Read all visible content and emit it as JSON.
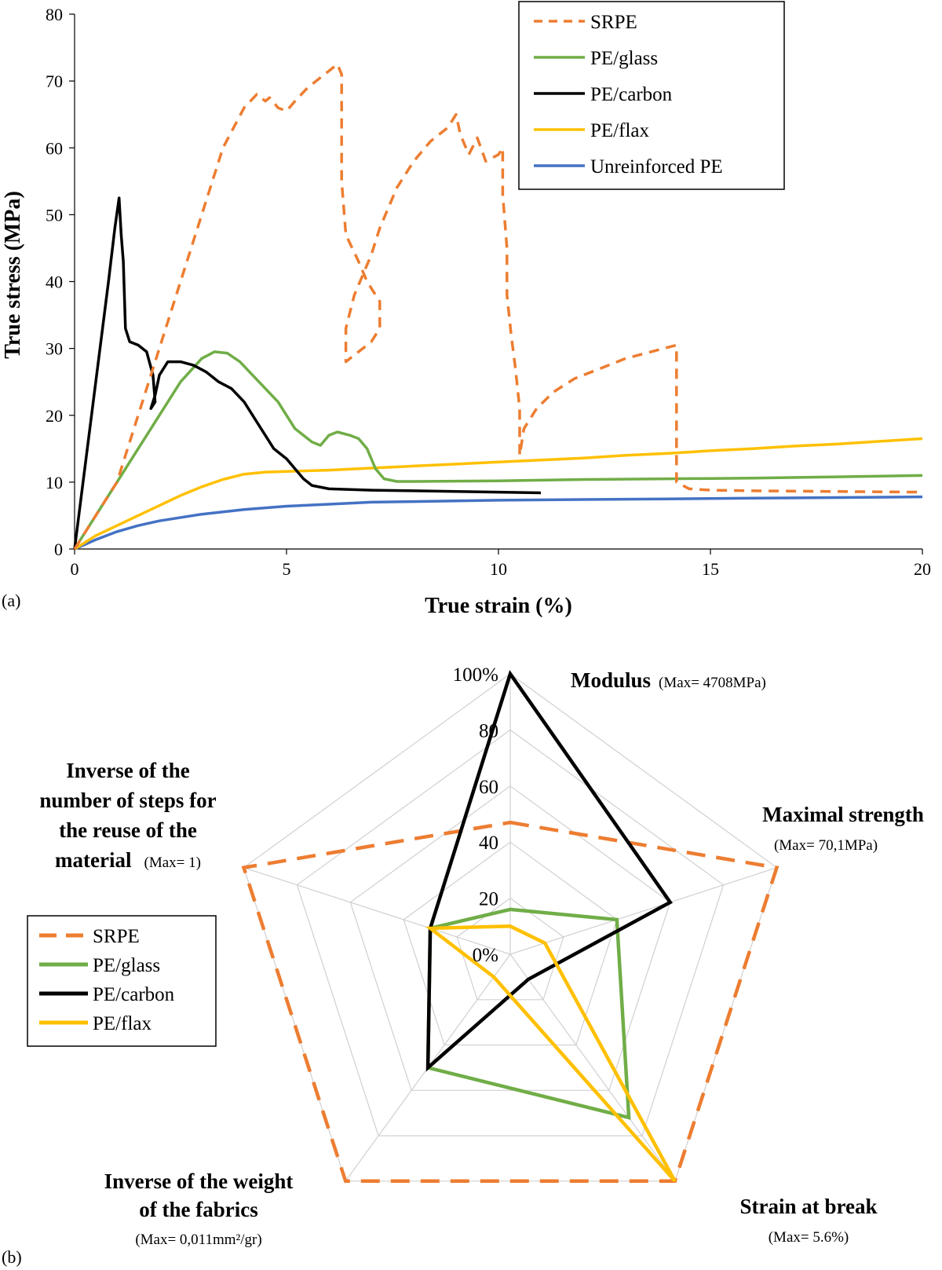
{
  "chart_data": [
    {
      "type": "line",
      "panel": "(a)",
      "xlabel": "True strain (%)",
      "ylabel": "True stress (MPa)",
      "xlim": [
        0,
        20
      ],
      "ylim": [
        0,
        80
      ],
      "xticks": [
        "0",
        "5",
        "10",
        "15",
        "20"
      ],
      "yticks": [
        "0",
        "10",
        "20",
        "30",
        "40",
        "50",
        "60",
        "70",
        "80"
      ],
      "grid": false,
      "legend_position": "top-right",
      "series": [
        {
          "name": "SRPE",
          "color": "#ED7D31",
          "dash": "dashed",
          "points": [
            [
              0,
              0
            ],
            [
              0.5,
              5
            ],
            [
              1.0,
              10
            ],
            [
              1.5,
              20
            ],
            [
              2.0,
              30
            ],
            [
              2.5,
              40
            ],
            [
              2.9,
              48
            ],
            [
              3.5,
              60
            ],
            [
              4.0,
              66
            ],
            [
              4.3,
              68
            ],
            [
              4.5,
              67
            ],
            [
              4.6,
              67.5
            ],
            [
              4.8,
              66
            ],
            [
              5.0,
              65.5
            ],
            [
              5.2,
              67
            ],
            [
              5.5,
              69
            ],
            [
              5.9,
              71
            ],
            [
              6.2,
              72.5
            ],
            [
              6.3,
              71
            ],
            [
              6.3,
              55
            ],
            [
              6.4,
              47
            ],
            [
              6.7,
              43
            ],
            [
              6.9,
              40
            ],
            [
              7.2,
              37
            ],
            [
              7.2,
              33
            ],
            [
              7.0,
              31
            ],
            [
              6.6,
              29
            ],
            [
              6.4,
              28
            ],
            [
              6.4,
              33
            ],
            [
              6.6,
              38
            ],
            [
              6.8,
              41
            ],
            [
              7.0,
              44
            ],
            [
              7.2,
              48
            ],
            [
              7.6,
              54
            ],
            [
              8.0,
              58
            ],
            [
              8.4,
              61
            ],
            [
              8.8,
              63
            ],
            [
              9.0,
              65
            ],
            [
              9.1,
              62
            ],
            [
              9.3,
              59
            ],
            [
              9.5,
              61.5
            ],
            [
              9.7,
              58
            ],
            [
              10.0,
              59
            ],
            [
              10.1,
              60
            ],
            [
              10.1,
              53
            ],
            [
              10.2,
              45
            ],
            [
              10.2,
              38
            ],
            [
              10.3,
              32
            ],
            [
              10.4,
              27
            ],
            [
              10.5,
              21
            ],
            [
              10.5,
              16
            ],
            [
              10.5,
              14
            ],
            [
              10.6,
              18
            ],
            [
              10.9,
              21
            ],
            [
              11.3,
              23.5
            ],
            [
              11.8,
              25.5
            ],
            [
              12.4,
              27
            ],
            [
              13.0,
              28.5
            ],
            [
              13.6,
              29.5
            ],
            [
              13.9,
              30
            ],
            [
              14.2,
              30.5
            ],
            [
              14.2,
              10
            ],
            [
              14.5,
              9
            ],
            [
              15,
              8.8
            ],
            [
              16,
              8.7
            ],
            [
              18,
              8.6
            ],
            [
              20,
              8.5
            ]
          ]
        },
        {
          "name": "PE/glass",
          "color": "#70AD47",
          "dash": "solid",
          "points": [
            [
              0,
              0
            ],
            [
              0.5,
              5
            ],
            [
              1.0,
              10
            ],
            [
              1.5,
              15
            ],
            [
              2.0,
              20
            ],
            [
              2.5,
              25
            ],
            [
              3.0,
              28.5
            ],
            [
              3.3,
              29.5
            ],
            [
              3.6,
              29.3
            ],
            [
              3.9,
              28
            ],
            [
              4.2,
              26
            ],
            [
              4.5,
              24
            ],
            [
              4.8,
              22
            ],
            [
              5.0,
              20
            ],
            [
              5.2,
              18
            ],
            [
              5.4,
              17
            ],
            [
              5.6,
              16
            ],
            [
              5.8,
              15.5
            ],
            [
              6.0,
              17
            ],
            [
              6.2,
              17.5
            ],
            [
              6.5,
              17
            ],
            [
              6.7,
              16.5
            ],
            [
              6.9,
              15
            ],
            [
              7.1,
              12
            ],
            [
              7.3,
              10.5
            ],
            [
              7.6,
              10.1
            ],
            [
              8,
              10.1
            ],
            [
              10,
              10.2
            ],
            [
              12,
              10.4
            ],
            [
              14,
              10.5
            ],
            [
              16,
              10.6
            ],
            [
              18,
              10.8
            ],
            [
              20,
              11
            ]
          ]
        },
        {
          "name": "PE/carbon",
          "color": "#000000",
          "dash": "solid",
          "points": [
            [
              0,
              0
            ],
            [
              0.2,
              10
            ],
            [
              0.4,
              20
            ],
            [
              0.6,
              30
            ],
            [
              0.8,
              40
            ],
            [
              0.95,
              48
            ],
            [
              1.05,
              52.5
            ],
            [
              1.1,
              47
            ],
            [
              1.15,
              43
            ],
            [
              1.2,
              33
            ],
            [
              1.3,
              31
            ],
            [
              1.5,
              30.5
            ],
            [
              1.7,
              29.5
            ],
            [
              1.85,
              26
            ],
            [
              1.9,
              22
            ],
            [
              1.8,
              21
            ],
            [
              1.9,
              23
            ],
            [
              2.0,
              26
            ],
            [
              2.2,
              28
            ],
            [
              2.5,
              28
            ],
            [
              2.8,
              27.5
            ],
            [
              3.1,
              26.5
            ],
            [
              3.4,
              25
            ],
            [
              3.7,
              24
            ],
            [
              4.0,
              22
            ],
            [
              4.3,
              19
            ],
            [
              4.5,
              17
            ],
            [
              4.7,
              15
            ],
            [
              5.0,
              13.5
            ],
            [
              5.2,
              12
            ],
            [
              5.4,
              10.5
            ],
            [
              5.6,
              9.5
            ],
            [
              6,
              9
            ],
            [
              7,
              8.8
            ],
            [
              8,
              8.7
            ],
            [
              9,
              8.6
            ],
            [
              10,
              8.5
            ],
            [
              11,
              8.4
            ]
          ]
        },
        {
          "name": "PE/flax",
          "color": "#FFC000",
          "dash": "solid",
          "points": [
            [
              0,
              0
            ],
            [
              0.5,
              2
            ],
            [
              1,
              3.5
            ],
            [
              1.5,
              5
            ],
            [
              2,
              6.5
            ],
            [
              2.5,
              8
            ],
            [
              3,
              9.3
            ],
            [
              3.5,
              10.4
            ],
            [
              4,
              11.2
            ],
            [
              4.5,
              11.5
            ],
            [
              5,
              11.6
            ],
            [
              6,
              11.8
            ],
            [
              7,
              12.1
            ],
            [
              8,
              12.4
            ],
            [
              9,
              12.7
            ],
            [
              10,
              13
            ],
            [
              11,
              13.3
            ],
            [
              12,
              13.6
            ],
            [
              13,
              14
            ],
            [
              14,
              14.3
            ],
            [
              15,
              14.7
            ],
            [
              16,
              15
            ],
            [
              17,
              15.4
            ],
            [
              18,
              15.7
            ],
            [
              19,
              16.1
            ],
            [
              20,
              16.5
            ]
          ]
        },
        {
          "name": "Unreinforced PE",
          "color": "#4472C4",
          "dash": "solid",
          "points": [
            [
              0,
              0
            ],
            [
              0.5,
              1.4
            ],
            [
              1,
              2.6
            ],
            [
              1.5,
              3.5
            ],
            [
              2,
              4.2
            ],
            [
              3,
              5.2
            ],
            [
              4,
              5.9
            ],
            [
              5,
              6.4
            ],
            [
              6,
              6.7
            ],
            [
              7,
              7
            ],
            [
              8,
              7.1
            ],
            [
              9,
              7.2
            ],
            [
              10,
              7.3
            ],
            [
              12,
              7.4
            ],
            [
              14,
              7.5
            ],
            [
              16,
              7.6
            ],
            [
              18,
              7.7
            ],
            [
              20,
              7.8
            ]
          ]
        }
      ]
    },
    {
      "type": "radar",
      "panel": "(b)",
      "rlim": [
        0,
        100
      ],
      "ticks": [
        "0%",
        "20",
        "40",
        "60",
        "80",
        "100%"
      ],
      "axes": [
        {
          "label": "Modulus",
          "sub": "(Max= 4708MPa)"
        },
        {
          "label": "Maximal strength",
          "sub": "(Max= 70,1MPa)"
        },
        {
          "label": "Strain at break",
          "sub": "(Max= 5.6%)"
        },
        {
          "label": "Inverse of the weight of the fabrics",
          "sub": "(Max= 0,011mm²/gr)"
        },
        {
          "label": "Inverse of the number of steps for the reuse of the material",
          "sub": "(Max= 1)"
        }
      ],
      "legend_position": "left",
      "series": [
        {
          "name": "SRPE",
          "color": "#ED7D31",
          "dash": "dashed",
          "values": [
            47,
            100,
            100,
            100,
            100
          ]
        },
        {
          "name": "PE/glass",
          "color": "#70AD47",
          "dash": "solid",
          "values": [
            16,
            40,
            72,
            50,
            30
          ]
        },
        {
          "name": "PE/carbon",
          "color": "#000000",
          "dash": "solid",
          "values": [
            100,
            60,
            11,
            50,
            30
          ]
        },
        {
          "name": "PE/flax",
          "color": "#FFC000",
          "dash": "solid",
          "values": [
            10,
            13,
            100,
            10,
            30
          ]
        }
      ]
    }
  ]
}
